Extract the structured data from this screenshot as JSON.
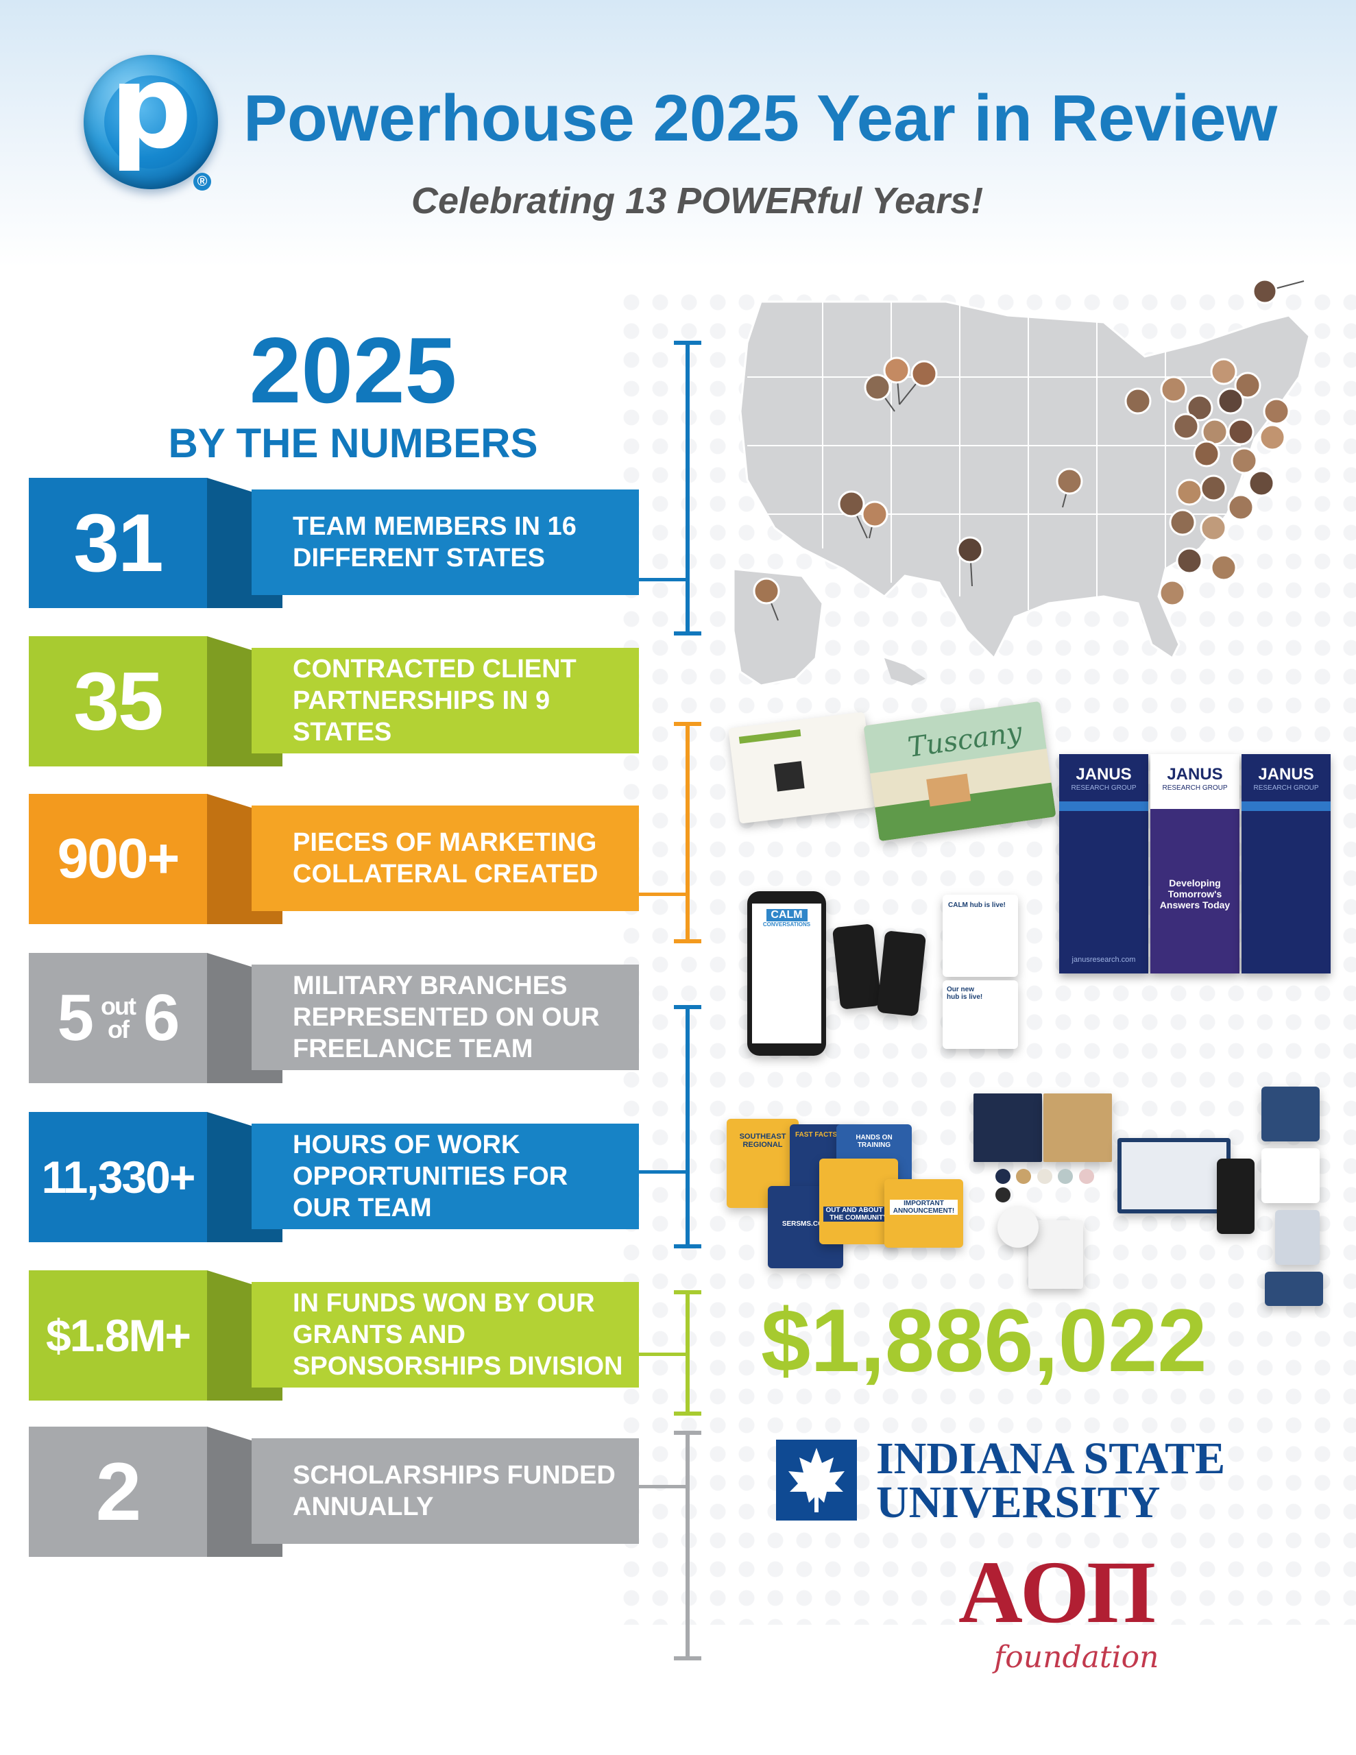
{
  "header": {
    "logo_letter": "p",
    "logo_registered": "®",
    "title": "Powerhouse 2025 Year in Review",
    "subtitle": "Celebrating 13 POWERful Years!"
  },
  "numbers_heading": {
    "year": "2025",
    "subtitle": "BY THE NUMBERS"
  },
  "stats": [
    {
      "number": "31",
      "label": "TEAM MEMBERS IN 16 DIFFERENT STATES",
      "color": "#1178bd"
    },
    {
      "number": "35",
      "label": "CONTRACTED CLIENT PARTNERSHIPS IN 9 STATES",
      "color": "#a8cb30"
    },
    {
      "number": "900+",
      "label": "PIECES OF MARKETING COLLATERAL CREATED",
      "color": "#f39a1e"
    },
    {
      "number_a": "5",
      "number_of": "out of",
      "number_b": "6",
      "label": "MILITARY BRANCHES REPRESENTED ON OUR FREELANCE TEAM",
      "color": "#a7a9ac"
    },
    {
      "number": "11,330+",
      "label": "HOURS OF WORK OPPORTUNITIES FOR OUR TEAM",
      "color": "#1178bd"
    },
    {
      "number": "$1.8M+",
      "label": "IN FUNDS WON BY OUR GRANTS AND SPONSORSHIPS DIVISION",
      "color": "#a8cb30"
    },
    {
      "number": "2",
      "label": "SCHOLARSHIPS FUNDED ANNUALLY",
      "color": "#a7a9ac"
    }
  ],
  "map": {
    "alt_label": "United States map with team member locations",
    "pin_count": 31
  },
  "collateral": {
    "banner_brand": "JANUS",
    "banner_sub": "RESEARCH GROUP",
    "banner_center_text": "Developing Tomorrow's Answers Today",
    "banner_url": "janusresearch.com",
    "app_name": "CALM",
    "app_sub": "CONVERSATIONS",
    "postcard_title": "Tuscany",
    "social_a": "SOUTHEAST REGIONAL",
    "social_b": "OUT AND ABOUT IN THE COMMUNITY",
    "social_c": "IMPORTANT ANNOUNCEMENT!",
    "social_d": "FAST FACTS",
    "social_e": "HANDS ON TRAINING",
    "social_f": "SERSMS.COM",
    "calm_hub": "CALM hub is live!",
    "hub_live": "Our new hub is live!"
  },
  "grant_total": "$1,886,022",
  "scholarships": {
    "university_line1": "INDIANA STATE",
    "university_line2": "UNIVERSITY",
    "foundation_letters": "AOΠ",
    "foundation_word": "foundation"
  },
  "colors": {
    "blue": "#1178bd",
    "green": "#a8cb30",
    "orange": "#f39a1e",
    "gray": "#a7a9ac",
    "isu_blue": "#0f4a93",
    "aopi_red": "#b11f33"
  }
}
